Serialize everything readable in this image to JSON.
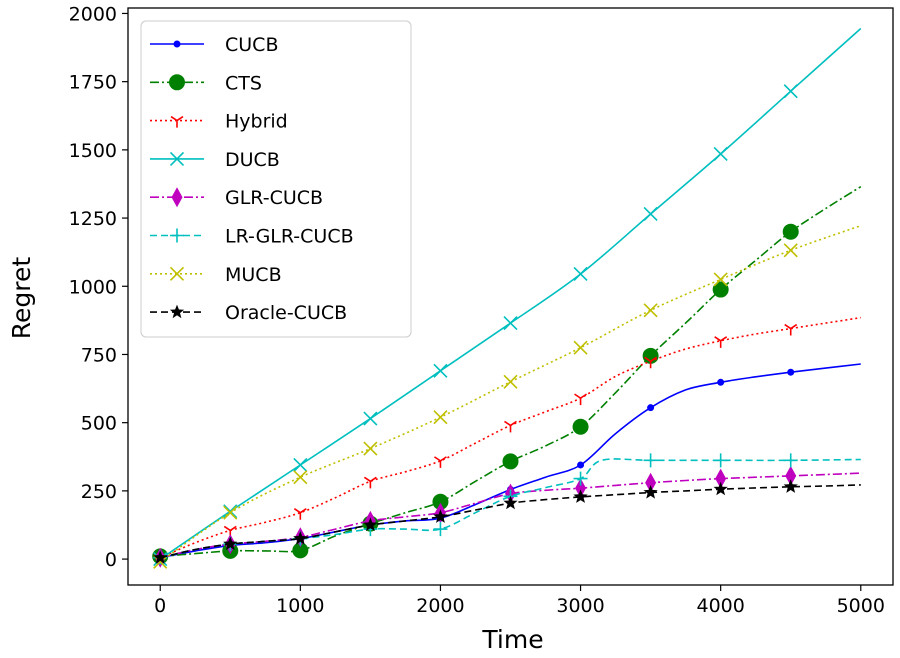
{
  "chart_data": {
    "type": "line",
    "xlabel": "Time",
    "ylabel": "Regret",
    "xlim": [
      -230,
      5230
    ],
    "ylim": [
      -95,
      2020
    ],
    "xticks": [
      0,
      1000,
      2000,
      3000,
      4000,
      5000
    ],
    "xtick_labels": [
      "0",
      "1000",
      "2000",
      "3000",
      "4000",
      "5000"
    ],
    "yticks": [
      0,
      250,
      500,
      750,
      1000,
      1250,
      1500,
      1750,
      2000
    ],
    "ytick_labels": [
      "0",
      "250",
      "500",
      "750",
      "1000",
      "1250",
      "1500",
      "1750",
      "2000"
    ],
    "grid": false,
    "legend_position": "top-left",
    "series": [
      {
        "name": "CUCB",
        "color": "#0000ff",
        "dash": "solid",
        "marker": "point",
        "x": [
          0,
          250,
          500,
          750,
          1000,
          1250,
          1500,
          1750,
          2000,
          2250,
          2500,
          2750,
          3000,
          3250,
          3500,
          3750,
          4000,
          4250,
          4500,
          4750,
          5000
        ],
        "y": [
          5,
          30,
          50,
          60,
          75,
          100,
          125,
          140,
          150,
          200,
          255,
          300,
          345,
          460,
          555,
          620,
          648,
          668,
          685,
          700,
          715
        ],
        "marker_x": [
          0,
          500,
          1000,
          1500,
          2000,
          2500,
          3000,
          3500,
          4000,
          4500
        ],
        "marker_y": [
          5,
          50,
          75,
          125,
          150,
          255,
          345,
          555,
          648,
          685
        ]
      },
      {
        "name": "CTS",
        "color": "#008000",
        "dash": "dashdot",
        "marker": "circle",
        "x": [
          0,
          250,
          500,
          750,
          1000,
          1250,
          1500,
          1750,
          2000,
          2250,
          2500,
          2750,
          3000,
          3250,
          3500,
          3750,
          4000,
          4250,
          4500,
          4750,
          5000
        ],
        "y": [
          10,
          20,
          30,
          30,
          32,
          85,
          130,
          170,
          210,
          285,
          358,
          415,
          485,
          610,
          745,
          865,
          988,
          1095,
          1200,
          1285,
          1365
        ],
        "marker_x": [
          0,
          500,
          1000,
          1500,
          2000,
          2500,
          3000,
          3500,
          4000,
          4500
        ],
        "marker_y": [
          10,
          30,
          32,
          130,
          210,
          358,
          485,
          745,
          988,
          1200
        ]
      },
      {
        "name": "Hybrid",
        "color": "#ff0000",
        "dash": "dotted",
        "marker": "tri_down",
        "x": [
          0,
          250,
          500,
          750,
          1000,
          1250,
          1500,
          1750,
          2000,
          2250,
          2500,
          2750,
          3000,
          3250,
          3500,
          3750,
          4000,
          4250,
          4500,
          4750,
          5000
        ],
        "y": [
          5,
          60,
          105,
          135,
          170,
          225,
          285,
          320,
          360,
          425,
          490,
          540,
          590,
          670,
          725,
          770,
          800,
          825,
          845,
          865,
          885
        ],
        "marker_x": [
          0,
          500,
          1000,
          1500,
          2000,
          2500,
          3000,
          3500,
          4000,
          4500
        ],
        "marker_y": [
          5,
          105,
          170,
          285,
          360,
          490,
          590,
          725,
          800,
          845
        ]
      },
      {
        "name": "DUCB",
        "color": "#00bfbf",
        "dash": "solid",
        "marker": "x",
        "x": [
          0,
          500,
          1000,
          1500,
          2000,
          2500,
          3000,
          3500,
          4000,
          4500,
          5000
        ],
        "y": [
          0,
          175,
          345,
          515,
          690,
          865,
          1045,
          1265,
          1485,
          1715,
          1945
        ],
        "marker_x": [
          0,
          500,
          1000,
          1500,
          2000,
          2500,
          3000,
          3500,
          4000,
          4500
        ],
        "marker_y": [
          0,
          175,
          345,
          515,
          690,
          865,
          1045,
          1265,
          1485,
          1715
        ]
      },
      {
        "name": "GLR-CUCB",
        "color": "#bf00bf",
        "dash": "dashdot",
        "marker": "thin_diamond",
        "x": [
          0,
          250,
          500,
          750,
          1000,
          1250,
          1500,
          1750,
          2000,
          2250,
          2500,
          2750,
          3000,
          3250,
          3500,
          3750,
          4000,
          4250,
          4500,
          4750,
          5000
        ],
        "y": [
          5,
          35,
          55,
          65,
          80,
          110,
          140,
          155,
          170,
          205,
          240,
          252,
          260,
          270,
          280,
          288,
          295,
          300,
          305,
          310,
          315
        ],
        "marker_x": [
          0,
          500,
          1000,
          1500,
          2000,
          2500,
          3000,
          3500,
          4000,
          4500
        ],
        "marker_y": [
          5,
          55,
          80,
          140,
          170,
          240,
          260,
          280,
          295,
          305
        ]
      },
      {
        "name": "LR-GLR-CUCB",
        "color": "#00bfbf",
        "dash": "dashed",
        "marker": "plus",
        "x": [
          0,
          250,
          500,
          750,
          1000,
          1250,
          1500,
          1750,
          2000,
          2250,
          2500,
          2750,
          3000,
          3150,
          3500,
          4000,
          4500,
          5000
        ],
        "y": [
          5,
          35,
          55,
          65,
          75,
          90,
          110,
          110,
          110,
          170,
          230,
          262,
          295,
          362,
          362,
          362,
          362,
          365
        ],
        "marker_x": [
          0,
          500,
          1000,
          1500,
          2000,
          2500,
          3000,
          3500,
          4000,
          4500
        ],
        "marker_y": [
          5,
          55,
          75,
          110,
          110,
          230,
          295,
          362,
          362,
          362
        ]
      },
      {
        "name": "MUCB",
        "color": "#bfbf00",
        "dash": "dotted",
        "marker": "x",
        "x": [
          0,
          500,
          1000,
          1500,
          2000,
          2500,
          3000,
          3500,
          4000,
          4500,
          5000
        ],
        "y": [
          -10,
          170,
          300,
          405,
          520,
          650,
          775,
          912,
          1025,
          1132,
          1222
        ],
        "marker_x": [
          0,
          500,
          1000,
          1500,
          2000,
          2500,
          3000,
          3500,
          4000,
          4500
        ],
        "marker_y": [
          -10,
          170,
          300,
          405,
          520,
          650,
          775,
          912,
          1025,
          1132
        ]
      },
      {
        "name": "Oracle-CUCB",
        "color": "#000000",
        "dash": "dashed",
        "marker": "star",
        "x": [
          0,
          250,
          500,
          750,
          1000,
          1250,
          1500,
          1750,
          2000,
          2250,
          2500,
          2750,
          3000,
          3250,
          3500,
          3750,
          4000,
          4250,
          4500,
          4750,
          5000
        ],
        "y": [
          5,
          35,
          55,
          65,
          75,
          100,
          125,
          140,
          155,
          180,
          205,
          218,
          228,
          236,
          244,
          250,
          256,
          261,
          265,
          268,
          272
        ],
        "marker_x": [
          0,
          500,
          1000,
          1500,
          2000,
          2500,
          3000,
          3500,
          4000,
          4500
        ],
        "marker_y": [
          5,
          55,
          75,
          125,
          155,
          205,
          228,
          244,
          256,
          265
        ]
      }
    ]
  }
}
